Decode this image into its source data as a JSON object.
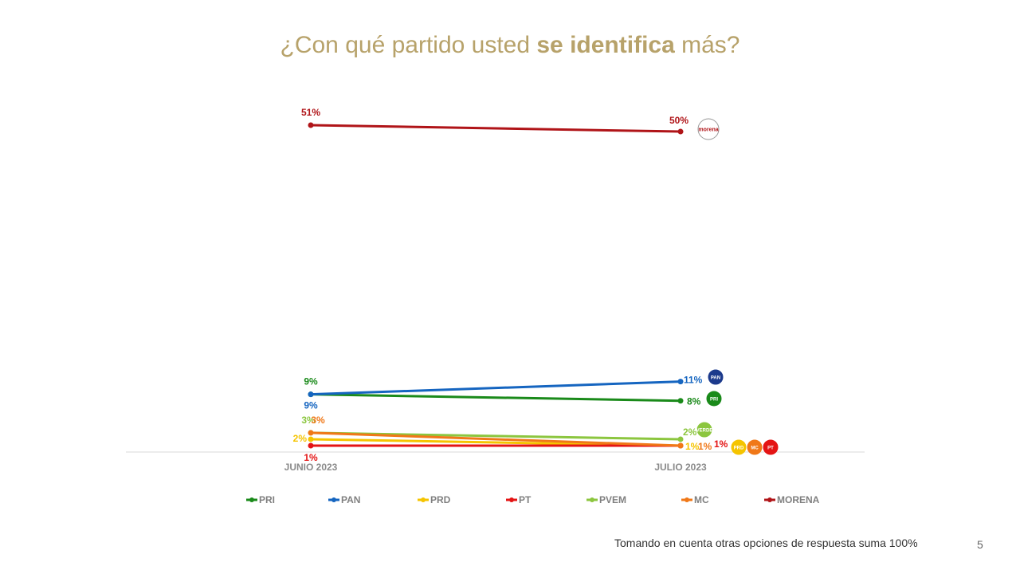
{
  "title": {
    "pre": "¿Con qué partido usted ",
    "bold": "se identifica",
    "post": " más?"
  },
  "chart_data": {
    "type": "line",
    "categories": [
      "JUNIO 2023",
      "JULIO 2023"
    ],
    "ylim": [
      0,
      55
    ],
    "grid": false,
    "legend_placement": "bottom",
    "series": [
      {
        "name": "PRI",
        "color": "#1a8a1a",
        "values": [
          9,
          8
        ],
        "labels": [
          "9%",
          "8%"
        ]
      },
      {
        "name": "PAN",
        "color": "#1565c0",
        "values": [
          9,
          11
        ],
        "labels": [
          "9%",
          "11%"
        ]
      },
      {
        "name": "PRD",
        "color": "#f5c400",
        "values": [
          2,
          1
        ],
        "labels": [
          "2%",
          "1%"
        ]
      },
      {
        "name": "PT",
        "color": "#e41414",
        "values": [
          1,
          1
        ],
        "labels": [
          "1%",
          "1%"
        ]
      },
      {
        "name": "PVEM",
        "color": "#8cc63f",
        "values": [
          3,
          2
        ],
        "labels": [
          "3%",
          "2%"
        ]
      },
      {
        "name": "MC",
        "color": "#f07818",
        "values": [
          3,
          1
        ],
        "labels": [
          "3%",
          "1%"
        ]
      },
      {
        "name": "MORENA",
        "color": "#b01418",
        "values": [
          51,
          50
        ],
        "labels": [
          "51%",
          "50%"
        ]
      }
    ],
    "party_logos": [
      {
        "name": "morena",
        "text": "morena",
        "color": "#b01418"
      },
      {
        "name": "pan",
        "text": "PAN",
        "color": "#1c3a8c"
      },
      {
        "name": "pri",
        "text": "PRI",
        "color": "#1a8a1a"
      },
      {
        "name": "pvem",
        "text": "VERDE",
        "color": "#8cc63f"
      },
      {
        "name": "prd",
        "text": "PRD",
        "color": "#f5c400"
      },
      {
        "name": "mc",
        "text": "MC",
        "color": "#f07818"
      },
      {
        "name": "pt",
        "text": "PT",
        "color": "#e41414"
      }
    ]
  },
  "footnote": "Tomando en cuenta otras opciones de respuesta suma 100%",
  "page_number": "5"
}
